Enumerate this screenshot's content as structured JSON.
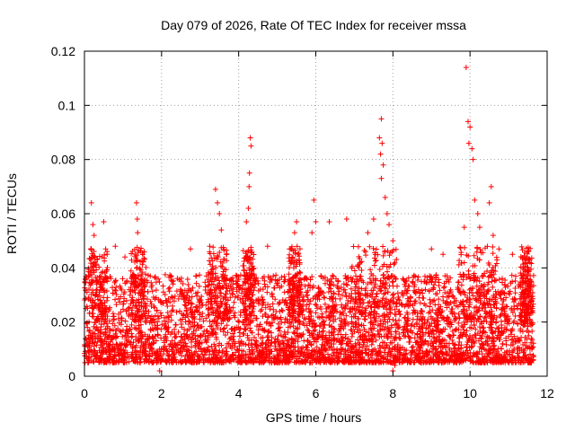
{
  "chart_data": {
    "type": "scatter",
    "title": "Day 079 of 2026, Rate Of TEC Index for receiver mssa",
    "xlabel": "GPS time / hours",
    "ylabel": "ROTI / TECUs",
    "xlim": [
      0,
      12
    ],
    "ylim": [
      0,
      0.12
    ],
    "grid": true,
    "x_ticks": [
      0,
      2,
      4,
      6,
      8,
      10,
      12
    ],
    "x_tick_labels": [
      "0",
      "2",
      "4",
      "6",
      "8",
      "10",
      "12"
    ],
    "y_ticks": [
      0,
      0.02,
      0.04,
      0.06,
      0.08,
      0.1,
      0.12
    ],
    "y_tick_labels": [
      "0",
      "0.02",
      "0.04",
      "0.06",
      "0.08",
      "0.1",
      "0.12"
    ],
    "marker": "+",
    "series": [
      {
        "name": "ROTI",
        "color": "#ff0000",
        "baseline_range": [
          0.005,
          0.03
        ],
        "outliers": [
          {
            "x": 0.18,
            "y": 0.064
          },
          {
            "x": 0.22,
            "y": 0.056
          },
          {
            "x": 0.25,
            "y": 0.052
          },
          {
            "x": 0.2,
            "y": 0.044
          },
          {
            "x": 0.5,
            "y": 0.057
          },
          {
            "x": 0.55,
            "y": 0.047
          },
          {
            "x": 0.8,
            "y": 0.048
          },
          {
            "x": 1.05,
            "y": 0.044
          },
          {
            "x": 1.35,
            "y": 0.064
          },
          {
            "x": 1.37,
            "y": 0.058
          },
          {
            "x": 1.38,
            "y": 0.053
          },
          {
            "x": 1.55,
            "y": 0.046
          },
          {
            "x": 2.25,
            "y": 0.037
          },
          {
            "x": 2.75,
            "y": 0.047
          },
          {
            "x": 3.25,
            "y": 0.048
          },
          {
            "x": 3.4,
            "y": 0.069
          },
          {
            "x": 3.45,
            "y": 0.064
          },
          {
            "x": 3.5,
            "y": 0.06
          },
          {
            "x": 3.55,
            "y": 0.054
          },
          {
            "x": 4.3,
            "y": 0.088
          },
          {
            "x": 4.32,
            "y": 0.085
          },
          {
            "x": 4.28,
            "y": 0.075
          },
          {
            "x": 4.27,
            "y": 0.07
          },
          {
            "x": 4.25,
            "y": 0.062
          },
          {
            "x": 4.2,
            "y": 0.057
          },
          {
            "x": 4.75,
            "y": 0.048
          },
          {
            "x": 5.5,
            "y": 0.057
          },
          {
            "x": 5.45,
            "y": 0.053
          },
          {
            "x": 5.95,
            "y": 0.065
          },
          {
            "x": 6.0,
            "y": 0.057
          },
          {
            "x": 5.9,
            "y": 0.053
          },
          {
            "x": 6.35,
            "y": 0.057
          },
          {
            "x": 6.8,
            "y": 0.058
          },
          {
            "x": 7.35,
            "y": 0.053
          },
          {
            "x": 7.5,
            "y": 0.058
          },
          {
            "x": 7.65,
            "y": 0.088
          },
          {
            "x": 7.7,
            "y": 0.095
          },
          {
            "x": 7.72,
            "y": 0.086
          },
          {
            "x": 7.68,
            "y": 0.082
          },
          {
            "x": 7.75,
            "y": 0.078
          },
          {
            "x": 7.7,
            "y": 0.073
          },
          {
            "x": 7.8,
            "y": 0.066
          },
          {
            "x": 7.85,
            "y": 0.06
          },
          {
            "x": 7.9,
            "y": 0.056
          },
          {
            "x": 8.0,
            "y": 0.05
          },
          {
            "x": 9.0,
            "y": 0.047
          },
          {
            "x": 9.3,
            "y": 0.045
          },
          {
            "x": 9.85,
            "y": 0.055
          },
          {
            "x": 9.9,
            "y": 0.114
          },
          {
            "x": 9.95,
            "y": 0.094
          },
          {
            "x": 10.0,
            "y": 0.092
          },
          {
            "x": 9.97,
            "y": 0.086
          },
          {
            "x": 10.05,
            "y": 0.084
          },
          {
            "x": 10.08,
            "y": 0.08
          },
          {
            "x": 10.12,
            "y": 0.065
          },
          {
            "x": 10.2,
            "y": 0.06
          },
          {
            "x": 10.25,
            "y": 0.055
          },
          {
            "x": 10.55,
            "y": 0.07
          },
          {
            "x": 10.5,
            "y": 0.064
          },
          {
            "x": 10.6,
            "y": 0.052
          },
          {
            "x": 10.75,
            "y": 0.047
          },
          {
            "x": 11.1,
            "y": 0.045
          },
          {
            "x": 11.5,
            "y": 0.046
          },
          {
            "x": 11.55,
            "y": 0.043
          },
          {
            "x": 1.95,
            "y": 0.002
          },
          {
            "x": 8.0,
            "y": 0.002
          },
          {
            "x": 8.05,
            "y": 0.004
          }
        ]
      }
    ]
  }
}
